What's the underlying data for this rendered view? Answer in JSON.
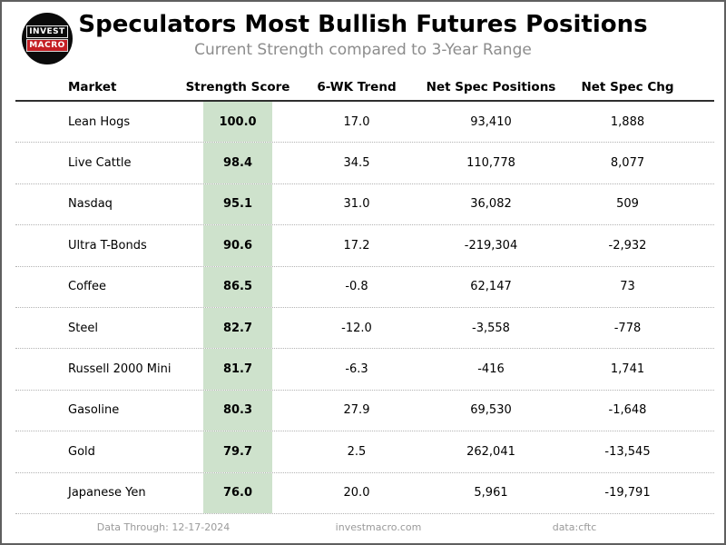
{
  "header": {
    "title": "Speculators Most Bullish Futures Positions",
    "subtitle": "Current Strength compared to 3-Year Range",
    "logo_line1": "INVEST",
    "logo_line2": "MACRO"
  },
  "table": {
    "columns": [
      "Market",
      "Strength Score",
      "6-WK Trend",
      "Net Spec Positions",
      "Net Spec Chg"
    ],
    "rows": [
      {
        "market": "Lean Hogs",
        "strength": "100.0",
        "trend": "17.0",
        "positions": "93,410",
        "chg": "1,888"
      },
      {
        "market": "Live Cattle",
        "strength": "98.4",
        "trend": "34.5",
        "positions": "110,778",
        "chg": "8,077"
      },
      {
        "market": "Nasdaq",
        "strength": "95.1",
        "trend": "31.0",
        "positions": "36,082",
        "chg": "509"
      },
      {
        "market": "Ultra T-Bonds",
        "strength": "90.6",
        "trend": "17.2",
        "positions": "-219,304",
        "chg": "-2,932"
      },
      {
        "market": "Coffee",
        "strength": "86.5",
        "trend": "-0.8",
        "positions": "62,147",
        "chg": "73"
      },
      {
        "market": "Steel",
        "strength": "82.7",
        "trend": "-12.0",
        "positions": "-3,558",
        "chg": "-778"
      },
      {
        "market": "Russell 2000 Mini",
        "strength": "81.7",
        "trend": "-6.3",
        "positions": "-416",
        "chg": "1,741"
      },
      {
        "market": "Gasoline",
        "strength": "80.3",
        "trend": "27.9",
        "positions": "69,530",
        "chg": "-1,648"
      },
      {
        "market": "Gold",
        "strength": "79.7",
        "trend": "2.5",
        "positions": "262,041",
        "chg": "-13,545"
      },
      {
        "market": "Japanese Yen",
        "strength": "76.0",
        "trend": "20.0",
        "positions": "5,961",
        "chg": "-19,791"
      }
    ]
  },
  "footer": {
    "data_through": "Data Through: 12-17-2024",
    "website": "investmacro.com",
    "source": "data:cftc"
  },
  "colors": {
    "strength_highlight": "#cee2cc",
    "logo_red": "#c41e24",
    "subtitle_gray": "#8c8c8c",
    "footer_gray": "#9a9a9a"
  },
  "chart_data": {
    "type": "table",
    "title": "Speculators Most Bullish Futures Positions",
    "subtitle": "Current Strength compared to 3-Year Range",
    "columns": [
      "Market",
      "Strength Score",
      "6-WK Trend",
      "Net Spec Positions",
      "Net Spec Chg"
    ],
    "rows": [
      [
        "Lean Hogs",
        100.0,
        17.0,
        93410,
        1888
      ],
      [
        "Live Cattle",
        98.4,
        34.5,
        110778,
        8077
      ],
      [
        "Nasdaq",
        95.1,
        31.0,
        36082,
        509
      ],
      [
        "Ultra T-Bonds",
        90.6,
        17.2,
        -219304,
        -2932
      ],
      [
        "Coffee",
        86.5,
        -0.8,
        62147,
        73
      ],
      [
        "Steel",
        82.7,
        -12.0,
        -3558,
        -778
      ],
      [
        "Russell 2000 Mini",
        81.7,
        -6.3,
        -416,
        1741
      ],
      [
        "Gasoline",
        80.3,
        27.9,
        69530,
        -1648
      ],
      [
        "Gold",
        79.7,
        2.5,
        262041,
        -13545
      ],
      [
        "Japanese Yen",
        76.0,
        20.0,
        5961,
        -19791
      ]
    ],
    "highlighted_column": "Strength Score",
    "highlight_color": "#cee2cc",
    "footer": [
      "Data Through: 12-17-2024",
      "investmacro.com",
      "data:cftc"
    ]
  }
}
